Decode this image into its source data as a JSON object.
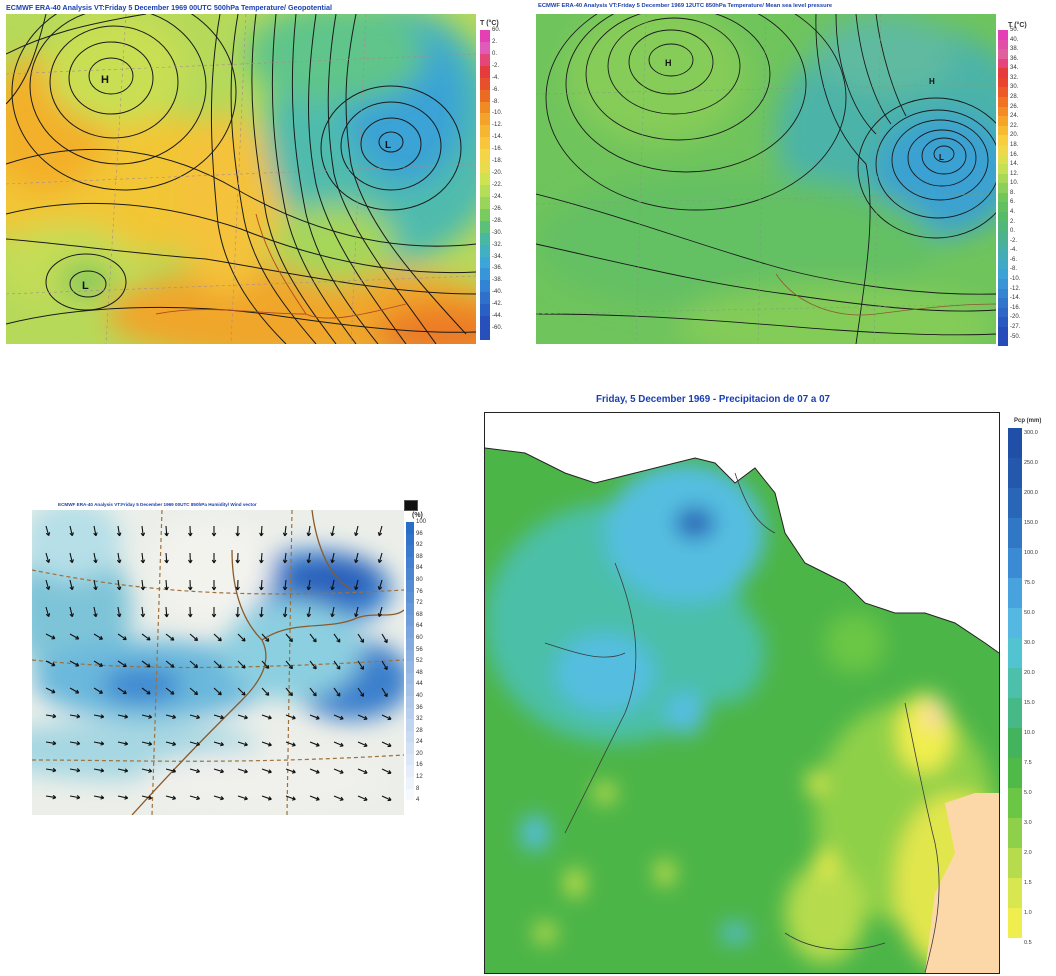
{
  "panels": {
    "top_left": {
      "title": "ECMWF ERA-40  Analysis VT:Friday 5 December 1969 00UTC 500hPa Temperature/  Geopotential",
      "colorbar_unit": "T (°C)",
      "colorbar_labels": [
        "60.",
        "2.",
        "0.",
        "-2.",
        "-4.",
        "-6.",
        "-8.",
        "-10.",
        "-12.",
        "-14.",
        "-16.",
        "-18.",
        "-20.",
        "-22.",
        "-24.",
        "-26.",
        "-28.",
        "-30.",
        "-32.",
        "-34.",
        "-36.",
        "-38.",
        "-40.",
        "-42.",
        "-44.",
        "-60."
      ],
      "colorbar_colors": [
        "#e43fb5",
        "#e05ab8",
        "#e5467a",
        "#e53b3b",
        "#e7502a",
        "#ec6a22",
        "#f08a22",
        "#f3a22a",
        "#f6b631",
        "#f7c63a",
        "#f4d548",
        "#e8dc4c",
        "#cfe252",
        "#b4dd58",
        "#98d55a",
        "#78cb5e",
        "#5ac07a",
        "#48b8a0",
        "#40b0c2",
        "#3ca6d8",
        "#3796d8",
        "#3383d4",
        "#2e70cc",
        "#2a5fc4",
        "#2750bc"
      ],
      "pressure_labels": [
        "H",
        "L",
        "L"
      ]
    },
    "top_right": {
      "title": "ECMWF ERA-40  Analysis VT:Friday 5 December 1969 12UTC 850hPa Temperature/ Mean sea level pressure",
      "colorbar_unit": "T (°C)",
      "colorbar_labels": [
        "50.",
        "40.",
        "38.",
        "36.",
        "34.",
        "32.",
        "30.",
        "28.",
        "26.",
        "24.",
        "22.",
        "20.",
        "18.",
        "16.",
        "14.",
        "12.",
        "10.",
        "8.",
        "6.",
        "4.",
        "2.",
        "0.",
        "-2.",
        "-4.",
        "-6.",
        "-8.",
        "-10.",
        "-12.",
        "-14.",
        "-16.",
        "-20.",
        "-27.",
        "-50."
      ],
      "colorbar_colors": [
        "#e43fb5",
        "#e24fa8",
        "#e0609b",
        "#e5467a",
        "#e53b3b",
        "#e8442e",
        "#ec5a26",
        "#f07322",
        "#f38c24",
        "#f5a42a",
        "#f7bb32",
        "#f6ce3e",
        "#efd94a",
        "#dce050",
        "#c5e054",
        "#a8d858",
        "#8ccf5a",
        "#72c75c",
        "#62c060",
        "#58bb6a",
        "#52b77a",
        "#4cb38c",
        "#48b0a0",
        "#44adb4",
        "#40aac6",
        "#3da3d6",
        "#3a94d6",
        "#3685d2",
        "#3276cc",
        "#2e67c6",
        "#2a58c0",
        "#274cba"
      ],
      "pressure_labels": [
        "H",
        "H",
        "L"
      ]
    },
    "bottom_left": {
      "title": "ECMWF ERA-40  Analysis VT:Friday 5 December 1969 00UTC 850hPa Humidity/ Wind vector",
      "colorbar_unit": "(%)",
      "colorbar_labels": [
        "100",
        "96",
        "92",
        "88",
        "84",
        "80",
        "76",
        "72",
        "68",
        "64",
        "60",
        "56",
        "52",
        "48",
        "44",
        "40",
        "36",
        "32",
        "28",
        "24",
        "20",
        "16",
        "12",
        "8",
        "4"
      ]
    },
    "bottom_right": {
      "title": "Friday, 5 December 1969 - Precipitacion de 07 a 07",
      "colorbar_unit": "Pcp (mm)",
      "colorbar_labels": [
        "300.0",
        "250.0",
        "200.0",
        "150.0",
        "100.0",
        "75.0",
        "50.0",
        "30.0",
        "20.0",
        "15.0",
        "10.0",
        "7.5",
        "5.0",
        "3.0",
        "2.0",
        "1.5",
        "1.0",
        "0.5"
      ],
      "colorbar_colors": [
        "#1f4fa6",
        "#2358ad",
        "#2a66b8",
        "#3078c6",
        "#3a8ad4",
        "#47a2de",
        "#55b8e2",
        "#52c3d0",
        "#4cc0aa",
        "#46b986",
        "#44b35e",
        "#4fba48",
        "#6bc645",
        "#8fd04a",
        "#b6dc4e",
        "#d8e64f",
        "#f0ee4e",
        "#ffffff"
      ]
    }
  }
}
